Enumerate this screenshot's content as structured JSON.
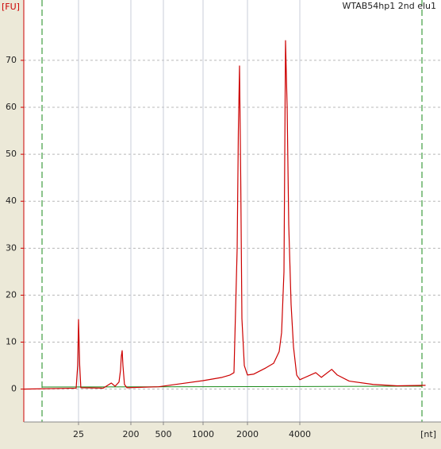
{
  "chart_data": {
    "type": "line",
    "title": "WTAB54hp1 2nd elu1",
    "y_label": "[FU]",
    "x_label": "[nt]",
    "x": [
      3,
      22.8,
      24.2,
      25,
      26.2,
      27.4,
      66.5,
      91.8,
      106.8,
      124.8,
      132.5,
      136.8,
      141.5,
      146,
      155,
      171,
      437,
      697,
      1000,
      1346,
      1523,
      1620,
      1703,
      1735,
      1767,
      1800,
      1834,
      1904,
      2000,
      2176,
      2546,
      2828,
      3044,
      3142,
      3243,
      3310,
      3382,
      3454,
      3564,
      3679,
      3837,
      4000,
      4934,
      5311,
      6091,
      6555,
      7674,
      10520,
      14420,
      21000
    ],
    "series": [
      {
        "name": "WTAB54hp1 2nd elu1",
        "color": "#cc0000",
        "values": [
          0,
          0.2,
          5,
          14.8,
          5,
          0.3,
          0.2,
          1.3,
          0.6,
          1.5,
          4,
          7,
          8.2,
          5,
          1,
          0.3,
          0.5,
          1.2,
          1.8,
          2.5,
          3,
          3.5,
          30,
          55,
          68.8,
          45,
          15,
          5,
          3,
          3.2,
          4.5,
          5.5,
          8,
          12,
          25,
          74.2,
          60,
          35,
          18,
          9,
          3,
          2,
          3.5,
          2.5,
          4.2,
          3,
          1.7,
          1,
          0.7,
          0.8
        ]
      }
    ],
    "xscale": "log",
    "xlim": [
      3,
      22000
    ],
    "xticks": [
      25,
      200,
      500,
      1000,
      2000,
      4000
    ],
    "ylim": [
      -7,
      82
    ],
    "yticks": [
      0,
      10,
      20,
      30,
      40,
      50,
      60,
      70
    ],
    "grid": true
  }
}
